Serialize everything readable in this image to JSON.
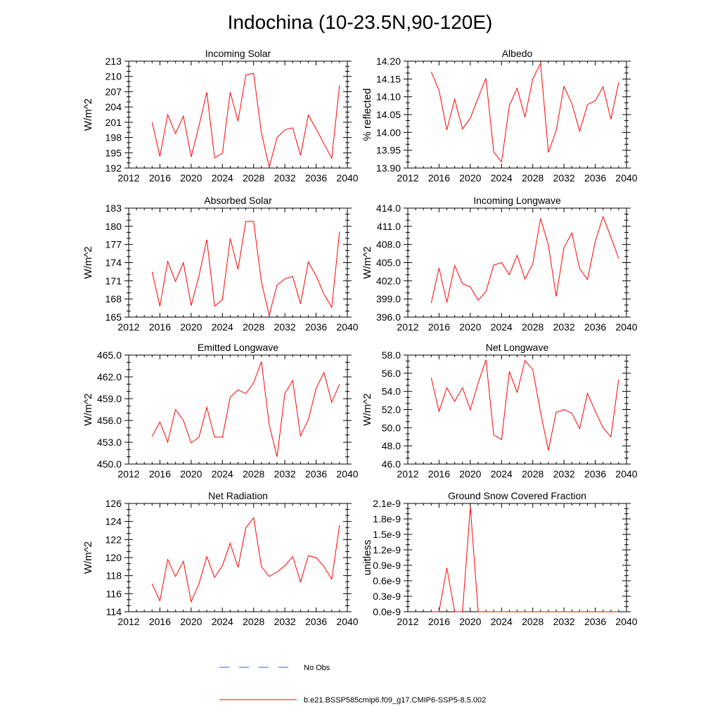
{
  "figure": {
    "title": "Indochina (10-23.5N,90-120E)",
    "legend": {
      "obs_label": "No Obs",
      "obs_color": "#3b5bdb",
      "model_label": "b.e21.BSSP585cmip6.f09_g17.CMIP6-SSP5-8.5.002",
      "model_color": "#ff0000"
    }
  },
  "chart_data": [
    {
      "type": "line",
      "title": "Incoming Solar",
      "xlabel": "",
      "ylabel": "W/m^2",
      "xlim": [
        2012,
        2040
      ],
      "ylim": [
        192,
        213
      ],
      "xticks": [
        2012,
        2016,
        2020,
        2024,
        2028,
        2032,
        2036,
        2040
      ],
      "yticks": [
        "192",
        "195",
        "198",
        "201",
        "204",
        "207",
        "210",
        "213"
      ],
      "series": [
        {
          "color": "#ff0000",
          "x": [
            2015,
            2016,
            2017,
            2018,
            2019,
            2020,
            2021,
            2022,
            2023,
            2024,
            2025,
            2026,
            2027,
            2028,
            2029,
            2030,
            2031,
            2032,
            2033,
            2034,
            2035,
            2036,
            2037,
            2038,
            2039
          ],
          "y": [
            201.0,
            194.3,
            202.5,
            198.8,
            202.2,
            194.2,
            200.3,
            206.9,
            194.0,
            194.9,
            206.9,
            201.2,
            210.3,
            210.6,
            198.9,
            192.2,
            198.0,
            199.5,
            199.9,
            194.5,
            202.4,
            199.7,
            196.8,
            193.9,
            208.3
          ]
        }
      ]
    },
    {
      "type": "line",
      "title": "Albedo",
      "xlabel": "",
      "ylabel": "% reflected",
      "xlim": [
        2012,
        2040
      ],
      "ylim": [
        13.9,
        14.2
      ],
      "xticks": [
        2012,
        2016,
        2020,
        2024,
        2028,
        2032,
        2036,
        2040
      ],
      "yticks": [
        "13.90",
        "13.95",
        "14.00",
        "14.05",
        "14.10",
        "14.15",
        "14.20"
      ],
      "series": [
        {
          "color": "#ff0000",
          "x": [
            2015,
            2016,
            2017,
            2018,
            2019,
            2020,
            2021,
            2022,
            2023,
            2024,
            2025,
            2026,
            2027,
            2028,
            2029,
            2030,
            2031,
            2032,
            2033,
            2034,
            2035,
            2036,
            2037,
            2038,
            2039
          ],
          "y": [
            14.17,
            14.118,
            14.007,
            14.093,
            14.01,
            14.04,
            14.097,
            14.152,
            13.945,
            13.917,
            14.075,
            14.124,
            14.043,
            14.15,
            14.194,
            13.944,
            14.005,
            14.129,
            14.081,
            14.003,
            14.078,
            14.089,
            14.128,
            14.037,
            14.14
          ]
        }
      ]
    },
    {
      "type": "line",
      "title": "Absorbed Solar",
      "xlabel": "",
      "ylabel": "W/m^2",
      "xlim": [
        2012,
        2040
      ],
      "ylim": [
        165,
        183
      ],
      "xticks": [
        2012,
        2016,
        2020,
        2024,
        2028,
        2032,
        2036,
        2040
      ],
      "yticks": [
        "165",
        "168",
        "171",
        "174",
        "177",
        "180",
        "183"
      ],
      "series": [
        {
          "color": "#ff0000",
          "x": [
            2015,
            2016,
            2017,
            2018,
            2019,
            2020,
            2021,
            2022,
            2023,
            2024,
            2025,
            2026,
            2027,
            2028,
            2029,
            2030,
            2031,
            2032,
            2033,
            2034,
            2035,
            2036,
            2037,
            2038,
            2039
          ],
          "y": [
            172.5,
            166.8,
            174.2,
            170.9,
            174.0,
            166.9,
            171.8,
            177.8,
            166.8,
            167.9,
            178.0,
            172.9,
            180.8,
            180.8,
            170.8,
            165.3,
            170.3,
            171.3,
            171.7,
            167.2,
            174.1,
            171.8,
            168.8,
            166.6,
            179.1
          ]
        }
      ]
    },
    {
      "type": "line",
      "title": "Incoming Longwave",
      "xlabel": "",
      "ylabel": "W/m^2",
      "xlim": [
        2012,
        2040
      ],
      "ylim": [
        396.0,
        414.0
      ],
      "xticks": [
        2012,
        2016,
        2020,
        2024,
        2028,
        2032,
        2036,
        2040
      ],
      "yticks": [
        "396.0",
        "399.0",
        "402.0",
        "405.0",
        "408.0",
        "411.0",
        "414.0"
      ],
      "series": [
        {
          "color": "#ff0000",
          "x": [
            2015,
            2016,
            2017,
            2018,
            2019,
            2020,
            2021,
            2022,
            2023,
            2024,
            2025,
            2026,
            2027,
            2028,
            2029,
            2030,
            2031,
            2032,
            2033,
            2034,
            2035,
            2036,
            2037,
            2038,
            2039
          ],
          "y": [
            398.3,
            404.1,
            398.4,
            404.5,
            401.5,
            401.0,
            398.8,
            400.2,
            404.6,
            405.0,
            403.0,
            406.2,
            402.3,
            404.8,
            412.3,
            407.9,
            399.4,
            407.5,
            409.9,
            404.0,
            402.2,
            408.5,
            412.6,
            409.2,
            405.7
          ]
        }
      ]
    },
    {
      "type": "line",
      "title": "Emitted Longwave",
      "xlabel": "",
      "ylabel": "W/m^2",
      "xlim": [
        2012,
        2040
      ],
      "ylim": [
        450.0,
        465.0
      ],
      "xticks": [
        2012,
        2016,
        2020,
        2024,
        2028,
        2032,
        2036,
        2040
      ],
      "yticks": [
        "450.0",
        "453.0",
        "456.0",
        "459.0",
        "462.0",
        "465.0"
      ],
      "series": [
        {
          "color": "#ff0000",
          "x": [
            2015,
            2016,
            2017,
            2018,
            2019,
            2020,
            2021,
            2022,
            2023,
            2024,
            2025,
            2026,
            2027,
            2028,
            2029,
            2030,
            2031,
            2032,
            2033,
            2034,
            2035,
            2036,
            2037,
            2038,
            2039
          ],
          "y": [
            453.8,
            455.8,
            453.0,
            457.5,
            456.0,
            452.9,
            453.7,
            457.8,
            453.7,
            453.7,
            459.2,
            460.2,
            459.7,
            461.2,
            464.1,
            455.4,
            451.0,
            459.7,
            461.5,
            453.9,
            456.1,
            460.4,
            462.6,
            458.5,
            461.0
          ]
        }
      ]
    },
    {
      "type": "line",
      "title": "Net Longwave",
      "xlabel": "",
      "ylabel": "W/m^2",
      "xlim": [
        2012,
        2040
      ],
      "ylim": [
        46.0,
        58.0
      ],
      "xticks": [
        2012,
        2016,
        2020,
        2024,
        2028,
        2032,
        2036,
        2040
      ],
      "yticks": [
        "46.0",
        "48.0",
        "50.0",
        "52.0",
        "54.0",
        "56.0",
        "58.0"
      ],
      "series": [
        {
          "color": "#ff0000",
          "x": [
            2015,
            2016,
            2017,
            2018,
            2019,
            2020,
            2021,
            2022,
            2023,
            2024,
            2025,
            2026,
            2027,
            2028,
            2029,
            2030,
            2031,
            2032,
            2033,
            2034,
            2035,
            2036,
            2037,
            2038,
            2039
          ],
          "y": [
            55.5,
            51.8,
            54.4,
            52.9,
            54.4,
            52.0,
            54.9,
            57.5,
            49.2,
            48.7,
            56.2,
            53.9,
            57.4,
            56.4,
            51.7,
            47.5,
            51.7,
            52.0,
            51.6,
            49.9,
            53.8,
            51.8,
            50.0,
            49.0,
            55.3
          ]
        }
      ]
    },
    {
      "type": "line",
      "title": "Net Radiation",
      "xlabel": "",
      "ylabel": "W/m^2",
      "xlim": [
        2012,
        2040
      ],
      "ylim": [
        114,
        126
      ],
      "xticks": [
        2012,
        2016,
        2020,
        2024,
        2028,
        2032,
        2036,
        2040
      ],
      "yticks": [
        "114",
        "116",
        "118",
        "120",
        "122",
        "124",
        "126"
      ],
      "series": [
        {
          "color": "#ff0000",
          "x": [
            2015,
            2016,
            2017,
            2018,
            2019,
            2020,
            2021,
            2022,
            2023,
            2024,
            2025,
            2026,
            2027,
            2028,
            2029,
            2030,
            2031,
            2032,
            2033,
            2034,
            2035,
            2036,
            2037,
            2038,
            2039
          ],
          "y": [
            117.1,
            115.2,
            119.8,
            117.9,
            119.6,
            115.1,
            117.1,
            120.1,
            117.8,
            119.1,
            121.6,
            118.9,
            123.3,
            124.4,
            119.0,
            117.9,
            118.4,
            119.1,
            120.1,
            117.3,
            120.2,
            120.0,
            119.0,
            117.6,
            123.6
          ]
        }
      ]
    },
    {
      "type": "line",
      "title": "Ground Snow Covered Fraction",
      "xlabel": "",
      "ylabel": "unitless",
      "xlim": [
        2012,
        2040
      ],
      "ylim": [
        0,
        2.1e-09
      ],
      "xticks": [
        2012,
        2016,
        2020,
        2024,
        2028,
        2032,
        2036,
        2040
      ],
      "yticks": [
        "0.0e-9",
        "0.3e-9",
        "0.6e-9",
        "0.9e-9",
        "1.2e-9",
        "1.5e-9",
        "1.8e-9",
        "2.1e-9"
      ],
      "series": [
        {
          "color": "#ff0000",
          "x": [
            2015,
            2016,
            2017,
            2018,
            2019,
            2020,
            2021,
            2022,
            2023,
            2024,
            2025,
            2026,
            2027,
            2028,
            2029,
            2030,
            2031,
            2032,
            2033,
            2034,
            2035,
            2036,
            2037,
            2038,
            2039
          ],
          "y": [
            0,
            0,
            8.5e-10,
            0,
            0,
            2.04e-09,
            0,
            0,
            0,
            0,
            0,
            0,
            0,
            0,
            0,
            0,
            0,
            0,
            0,
            0,
            0,
            0,
            0,
            0,
            0
          ]
        }
      ]
    }
  ]
}
